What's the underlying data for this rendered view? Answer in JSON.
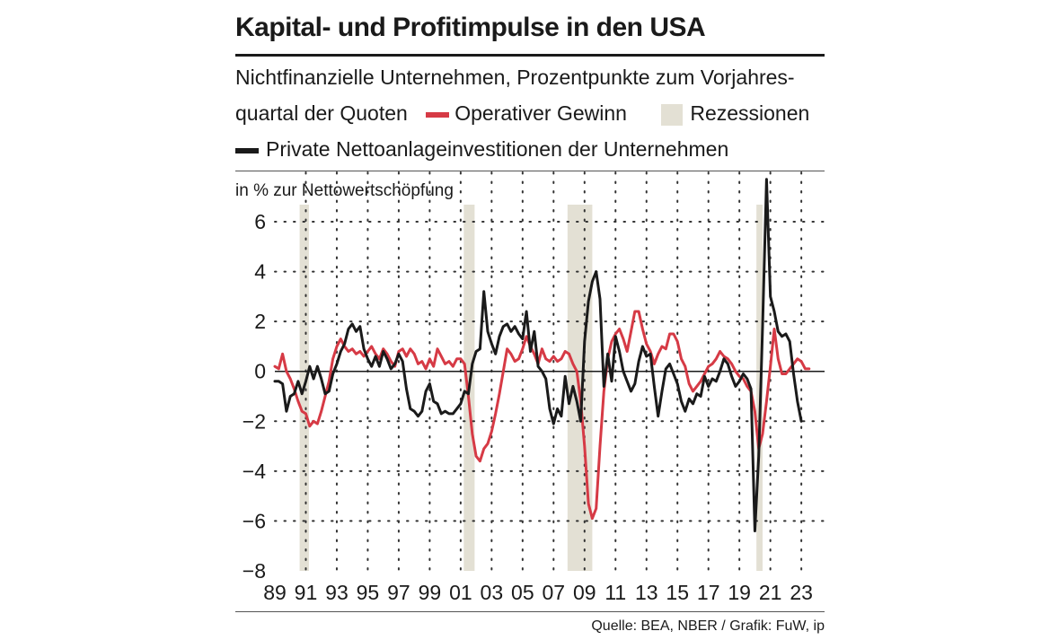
{
  "header": {
    "title": "Kapital- und Profitimpulse in den USA",
    "subtitle_line1": "Nichtfinanzielle Unternehmen, Prozentpunkte zum Vorjahres-",
    "subtitle_line2": "quartal der Quoten",
    "legend_profit": "Operativer Gewinn",
    "legend_recession": "Rezessionen",
    "legend_invest": "Private Nettoanlageinvestitionen der Unternehmen",
    "unit": "in % zur Nettowertschöpfung",
    "source": "Quelle: BEA, NBER / Grafik: FuW, ip"
  },
  "colors": {
    "profit": "#d63a45",
    "invest": "#1a1a1a",
    "recession": "#e3e0d4",
    "grid": "#333333"
  },
  "chart_data": {
    "type": "line",
    "ylim": [
      -8,
      7
    ],
    "yticks": [
      6,
      4,
      2,
      0,
      -2,
      -4,
      -6,
      -8
    ],
    "ytick_labels": [
      "6",
      "4",
      "2",
      "0",
      "−2",
      "−4",
      "−6",
      "−8"
    ],
    "xlim": [
      1989.0,
      2024.5
    ],
    "xtick_labels": [
      "89",
      "91",
      "93",
      "95",
      "97",
      "99",
      "01",
      "03",
      "05",
      "07",
      "09",
      "11",
      "13",
      "15",
      "17",
      "19",
      "21",
      "23"
    ],
    "xtick_years": [
      1989,
      1991,
      1993,
      1995,
      1997,
      1999,
      2001,
      2003,
      2005,
      2007,
      2009,
      2011,
      2013,
      2015,
      2017,
      2019,
      2021,
      2023
    ],
    "grid": "dotted",
    "recessions": [
      [
        1990.6,
        1991.2
      ],
      [
        2001.2,
        2001.9
      ],
      [
        2007.9,
        2009.5
      ],
      [
        2020.1,
        2020.5
      ]
    ],
    "series": [
      {
        "name": "Operativer Gewinn",
        "points": [
          [
            1989.0,
            0.2
          ],
          [
            1989.25,
            0.1
          ],
          [
            1989.5,
            0.7
          ],
          [
            1989.75,
            0.0
          ],
          [
            1990.0,
            -0.3
          ],
          [
            1990.25,
            -0.7
          ],
          [
            1990.5,
            -1.2
          ],
          [
            1990.75,
            -1.6
          ],
          [
            1991.0,
            -1.7
          ],
          [
            1991.25,
            -2.2
          ],
          [
            1991.5,
            -2.0
          ],
          [
            1991.75,
            -2.1
          ],
          [
            1992.0,
            -1.6
          ],
          [
            1992.25,
            -1.0
          ],
          [
            1992.5,
            -0.4
          ],
          [
            1992.75,
            0.5
          ],
          [
            1993.0,
            1.0
          ],
          [
            1993.25,
            1.3
          ],
          [
            1993.5,
            1.0
          ],
          [
            1993.75,
            0.8
          ],
          [
            1994.0,
            0.9
          ],
          [
            1994.25,
            0.7
          ],
          [
            1994.5,
            0.8
          ],
          [
            1994.75,
            0.6
          ],
          [
            1995.0,
            0.8
          ],
          [
            1995.25,
            1.0
          ],
          [
            1995.5,
            0.7
          ],
          [
            1995.75,
            0.5
          ],
          [
            1996.0,
            0.9
          ],
          [
            1996.25,
            0.7
          ],
          [
            1996.5,
            0.4
          ],
          [
            1996.75,
            0.2
          ],
          [
            1997.0,
            0.8
          ],
          [
            1997.25,
            0.9
          ],
          [
            1997.5,
            0.6
          ],
          [
            1997.75,
            0.9
          ],
          [
            1998.0,
            0.7
          ],
          [
            1998.25,
            0.3
          ],
          [
            1998.5,
            0.4
          ],
          [
            1998.75,
            0.1
          ],
          [
            1999.0,
            0.5
          ],
          [
            1999.25,
            0.2
          ],
          [
            1999.5,
            0.9
          ],
          [
            1999.75,
            0.6
          ],
          [
            2000.0,
            0.3
          ],
          [
            2000.25,
            0.4
          ],
          [
            2000.5,
            0.2
          ],
          [
            2000.75,
            0.5
          ],
          [
            2001.0,
            0.5
          ],
          [
            2001.25,
            0.3
          ],
          [
            2001.5,
            -1.0
          ],
          [
            2001.75,
            -2.5
          ],
          [
            2002.0,
            -3.4
          ],
          [
            2002.25,
            -3.6
          ],
          [
            2002.5,
            -3.1
          ],
          [
            2002.75,
            -2.9
          ],
          [
            2003.0,
            -2.4
          ],
          [
            2003.25,
            -1.7
          ],
          [
            2003.5,
            -0.9
          ],
          [
            2003.75,
            0.0
          ],
          [
            2004.0,
            0.9
          ],
          [
            2004.25,
            0.7
          ],
          [
            2004.5,
            0.4
          ],
          [
            2004.75,
            0.5
          ],
          [
            2005.0,
            0.9
          ],
          [
            2005.25,
            1.4
          ],
          [
            2005.5,
            1.0
          ],
          [
            2005.75,
            0.7
          ],
          [
            2006.0,
            0.3
          ],
          [
            2006.25,
            0.9
          ],
          [
            2006.5,
            0.5
          ],
          [
            2006.75,
            0.4
          ],
          [
            2007.0,
            0.6
          ],
          [
            2007.25,
            0.4
          ],
          [
            2007.5,
            0.5
          ],
          [
            2007.75,
            0.8
          ],
          [
            2008.0,
            0.7
          ],
          [
            2008.25,
            0.3
          ],
          [
            2008.5,
            0.0
          ],
          [
            2008.75,
            -1.2
          ],
          [
            2009.0,
            -3.0
          ],
          [
            2009.25,
            -5.3
          ],
          [
            2009.5,
            -5.9
          ],
          [
            2009.75,
            -5.5
          ],
          [
            2010.0,
            -3.0
          ],
          [
            2010.25,
            -0.8
          ],
          [
            2010.5,
            0.5
          ],
          [
            2010.75,
            1.2
          ],
          [
            2011.0,
            1.5
          ],
          [
            2011.25,
            1.7
          ],
          [
            2011.5,
            1.3
          ],
          [
            2011.75,
            0.8
          ],
          [
            2012.0,
            1.6
          ],
          [
            2012.25,
            2.4
          ],
          [
            2012.5,
            2.4
          ],
          [
            2012.75,
            1.7
          ],
          [
            2013.0,
            1.1
          ],
          [
            2013.25,
            0.8
          ],
          [
            2013.5,
            0.3
          ],
          [
            2013.75,
            0.7
          ],
          [
            2014.0,
            1.0
          ],
          [
            2014.25,
            0.9
          ],
          [
            2014.5,
            1.5
          ],
          [
            2014.75,
            1.5
          ],
          [
            2015.0,
            1.2
          ],
          [
            2015.25,
            0.5
          ],
          [
            2015.5,
            0.2
          ],
          [
            2015.75,
            -0.5
          ],
          [
            2016.0,
            -0.8
          ],
          [
            2016.25,
            -0.6
          ],
          [
            2016.5,
            -0.4
          ],
          [
            2016.75,
            -0.1
          ],
          [
            2017.0,
            0.2
          ],
          [
            2017.25,
            0.3
          ],
          [
            2017.5,
            0.5
          ],
          [
            2017.75,
            0.8
          ],
          [
            2018.0,
            0.6
          ],
          [
            2018.25,
            0.5
          ],
          [
            2018.5,
            0.3
          ],
          [
            2018.75,
            0.0
          ],
          [
            2019.0,
            -0.2
          ],
          [
            2019.25,
            -0.3
          ],
          [
            2019.5,
            -0.6
          ],
          [
            2019.75,
            -0.8
          ],
          [
            2020.0,
            -1.6
          ],
          [
            2020.25,
            -3.1
          ],
          [
            2020.5,
            -2.5
          ],
          [
            2020.75,
            -1.2
          ],
          [
            2021.0,
            0.2
          ],
          [
            2021.25,
            1.7
          ],
          [
            2021.5,
            0.5
          ],
          [
            2021.75,
            -0.1
          ],
          [
            2022.0,
            -0.1
          ],
          [
            2022.25,
            0.1
          ],
          [
            2022.5,
            0.3
          ],
          [
            2022.75,
            0.5
          ],
          [
            2023.0,
            0.4
          ],
          [
            2023.25,
            0.1
          ],
          [
            2023.5,
            0.1
          ]
        ]
      },
      {
        "name": "Private Nettoanlageinvestitionen der Unternehmen",
        "points": [
          [
            1989.0,
            -0.4
          ],
          [
            1989.25,
            -0.4
          ],
          [
            1989.5,
            -0.5
          ],
          [
            1989.75,
            -1.6
          ],
          [
            1990.0,
            -1.0
          ],
          [
            1990.25,
            -0.9
          ],
          [
            1990.5,
            -0.4
          ],
          [
            1990.75,
            -0.9
          ],
          [
            1991.0,
            -0.4
          ],
          [
            1991.25,
            0.2
          ],
          [
            1991.5,
            -0.3
          ],
          [
            1991.75,
            0.2
          ],
          [
            1992.0,
            -0.3
          ],
          [
            1992.25,
            -0.9
          ],
          [
            1992.5,
            -0.8
          ],
          [
            1992.75,
            -0.1
          ],
          [
            1993.0,
            0.3
          ],
          [
            1993.25,
            0.8
          ],
          [
            1993.5,
            1.1
          ],
          [
            1993.75,
            1.7
          ],
          [
            1994.0,
            1.9
          ],
          [
            1994.25,
            1.6
          ],
          [
            1994.5,
            1.8
          ],
          [
            1994.75,
            0.9
          ],
          [
            1995.0,
            0.5
          ],
          [
            1995.25,
            0.2
          ],
          [
            1995.5,
            0.6
          ],
          [
            1995.75,
            0.2
          ],
          [
            1996.0,
            0.8
          ],
          [
            1996.25,
            0.5
          ],
          [
            1996.5,
            0.1
          ],
          [
            1996.75,
            0.3
          ],
          [
            1997.0,
            0.7
          ],
          [
            1997.25,
            0.4
          ],
          [
            1997.5,
            -0.7
          ],
          [
            1997.75,
            -1.5
          ],
          [
            1998.0,
            -1.6
          ],
          [
            1998.25,
            -1.8
          ],
          [
            1998.5,
            -1.6
          ],
          [
            1998.75,
            -0.8
          ],
          [
            1999.0,
            -0.5
          ],
          [
            1999.25,
            -1.2
          ],
          [
            1999.5,
            -1.3
          ],
          [
            1999.75,
            -1.7
          ],
          [
            2000.0,
            -1.6
          ],
          [
            2000.25,
            -1.7
          ],
          [
            2000.5,
            -1.7
          ],
          [
            2000.75,
            -1.5
          ],
          [
            2001.0,
            -1.3
          ],
          [
            2001.25,
            -0.8
          ],
          [
            2001.5,
            -0.9
          ],
          [
            2001.75,
            0.3
          ],
          [
            2002.0,
            0.8
          ],
          [
            2002.25,
            0.9
          ],
          [
            2002.5,
            3.2
          ],
          [
            2002.75,
            1.6
          ],
          [
            2003.0,
            1.1
          ],
          [
            2003.25,
            0.7
          ],
          [
            2003.5,
            1.4
          ],
          [
            2003.75,
            1.8
          ],
          [
            2004.0,
            1.9
          ],
          [
            2004.25,
            1.6
          ],
          [
            2004.5,
            1.8
          ],
          [
            2004.75,
            1.5
          ],
          [
            2005.0,
            1.3
          ],
          [
            2005.25,
            2.4
          ],
          [
            2005.5,
            0.8
          ],
          [
            2005.75,
            1.6
          ],
          [
            2006.0,
            0.2
          ],
          [
            2006.25,
            0.0
          ],
          [
            2006.5,
            -0.3
          ],
          [
            2006.75,
            -1.5
          ],
          [
            2007.0,
            -2.1
          ],
          [
            2007.25,
            -1.5
          ],
          [
            2007.5,
            -1.8
          ],
          [
            2007.75,
            -0.2
          ],
          [
            2008.0,
            -1.3
          ],
          [
            2008.25,
            -0.6
          ],
          [
            2008.5,
            -1.2
          ],
          [
            2008.75,
            -2.0
          ],
          [
            2009.0,
            1.2
          ],
          [
            2009.25,
            2.8
          ],
          [
            2009.5,
            3.6
          ],
          [
            2009.75,
            4.0
          ],
          [
            2010.0,
            2.9
          ],
          [
            2010.25,
            -0.6
          ],
          [
            2010.5,
            0.7
          ],
          [
            2010.75,
            -0.4
          ],
          [
            2011.0,
            1.4
          ],
          [
            2011.25,
            0.8
          ],
          [
            2011.5,
            0.0
          ],
          [
            2011.75,
            -0.4
          ],
          [
            2012.0,
            -0.8
          ],
          [
            2012.25,
            -0.5
          ],
          [
            2012.5,
            0.4
          ],
          [
            2012.75,
            1.0
          ],
          [
            2013.0,
            0.6
          ],
          [
            2013.25,
            0.7
          ],
          [
            2013.5,
            -0.6
          ],
          [
            2013.75,
            -1.8
          ],
          [
            2014.0,
            -0.8
          ],
          [
            2014.25,
            0.1
          ],
          [
            2014.5,
            0.3
          ],
          [
            2014.75,
            -0.1
          ],
          [
            2015.0,
            -0.5
          ],
          [
            2015.25,
            -1.2
          ],
          [
            2015.5,
            -1.6
          ],
          [
            2015.75,
            -1.1
          ],
          [
            2016.0,
            -1.3
          ],
          [
            2016.25,
            -0.9
          ],
          [
            2016.5,
            -1.0
          ],
          [
            2016.75,
            -0.2
          ],
          [
            2017.0,
            -0.6
          ],
          [
            2017.25,
            -0.3
          ],
          [
            2017.5,
            -0.4
          ],
          [
            2017.75,
            0.0
          ],
          [
            2018.0,
            0.5
          ],
          [
            2018.25,
            0.3
          ],
          [
            2018.5,
            -0.2
          ],
          [
            2018.75,
            -0.6
          ],
          [
            2019.0,
            -0.4
          ],
          [
            2019.25,
            -0.1
          ],
          [
            2019.5,
            -0.3
          ],
          [
            2019.75,
            -0.7
          ],
          [
            2020.0,
            -6.4
          ],
          [
            2020.25,
            -3.4
          ],
          [
            2020.5,
            1.8
          ],
          [
            2020.75,
            7.7
          ],
          [
            2021.0,
            3.0
          ],
          [
            2021.25,
            2.4
          ],
          [
            2021.5,
            1.6
          ],
          [
            2021.75,
            1.4
          ],
          [
            2022.0,
            1.5
          ],
          [
            2022.25,
            1.2
          ],
          [
            2022.5,
            -0.1
          ],
          [
            2022.75,
            -1.2
          ],
          [
            2023.0,
            -2.0
          ]
        ]
      }
    ]
  }
}
